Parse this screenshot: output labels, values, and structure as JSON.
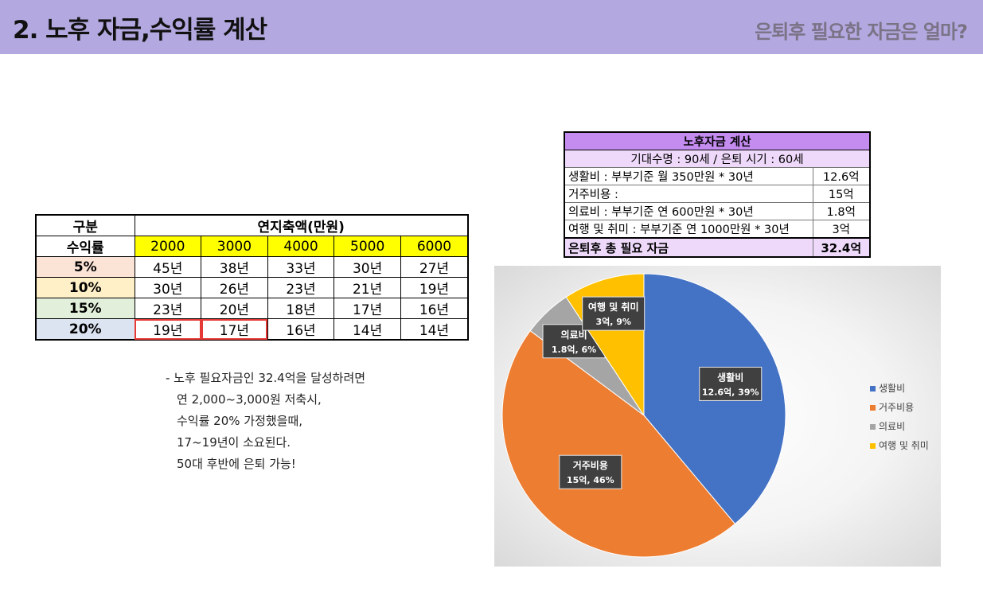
{
  "header": {
    "title": "2. 노후 자금,수익률 계산",
    "subtitle": "은퇴후 필요한 자금은 얼마?"
  },
  "years_table": {
    "gubun": "구분",
    "group_header": "연지축액(만원)",
    "rate_header": "수익률",
    "amounts": [
      "2000",
      "3000",
      "4000",
      "5000",
      "6000"
    ],
    "rows": [
      {
        "rate": "5%",
        "cells": [
          "45년",
          "38년",
          "33년",
          "30년",
          "27년"
        ]
      },
      {
        "rate": "10%",
        "cells": [
          "30년",
          "26년",
          "23년",
          "21년",
          "19년"
        ]
      },
      {
        "rate": "15%",
        "cells": [
          "23년",
          "20년",
          "18년",
          "17년",
          "16년"
        ]
      },
      {
        "rate": "20%",
        "cells": [
          "19년",
          "17년",
          "16년",
          "14년",
          "14년"
        ]
      }
    ]
  },
  "note": {
    "lines": [
      "- 노후 필요자금인 32.4억을 달성하려면",
      "연 2,000~3,000원 저축시,",
      "수익률 20% 가정했을때,",
      "17~19년이 소요된다.",
      "50대 후반에 은퇴 가능!"
    ]
  },
  "fund_table": {
    "title": "노후자금 계산",
    "subtitle": "기대수명 : 90세 / 은퇴 시기 : 60세",
    "rows": [
      {
        "label": "생활비 : 부부기준 월 350만원 * 30년",
        "value": "12.6억"
      },
      {
        "label": "거주비용 :",
        "value": "15억"
      },
      {
        "label": "의료비 : 부부기준 연 600만원 * 30년",
        "value": "1.8억"
      },
      {
        "label": "여행 및 취미 : 부부기준 연 1000만원 * 30년",
        "value": "3억"
      }
    ],
    "total_label": "은퇴후 총 필요 자금",
    "total_value": "32.4억"
  },
  "chart_data": {
    "type": "pie",
    "categories": [
      "생활비",
      "거주비용",
      "의료비",
      "여행 및 취미"
    ],
    "values": [
      12.6,
      15,
      1.8,
      3
    ],
    "data_labels": [
      "12.6억, 39%",
      "15억, 46%",
      "1.8억, 6%",
      "3억, 9%"
    ],
    "colors": [
      "#4472c4",
      "#ed7d31",
      "#a5a5a5",
      "#ffc000"
    ],
    "legend_position": "right"
  }
}
